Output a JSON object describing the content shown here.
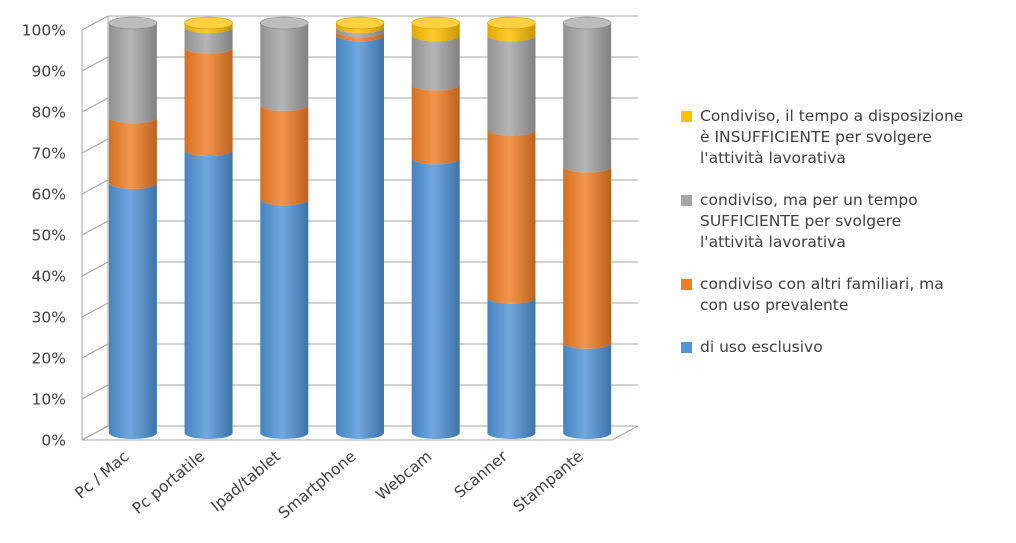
{
  "chart_data": {
    "type": "bar",
    "stacked": true,
    "percent": true,
    "style": "3d-cylinder",
    "categories": [
      "Pc / Mac",
      "Pc portatile",
      "Ipad/tablet",
      "Smartphone",
      "Webcam",
      "Scanner",
      "Stampante"
    ],
    "series": [
      {
        "name": "di uso esclusivo",
        "color": "#4f95d8",
        "values": [
          61,
          69,
          57,
          97,
          67,
          33,
          22
        ]
      },
      {
        "name": "condiviso con altri familiari, ma\ncon uso prevalente",
        "color": "#f07e26",
        "values": [
          16,
          25,
          23,
          1,
          18,
          41,
          43
        ]
      },
      {
        "name": "condiviso, ma per un tempo\nSUFFICIENTE per svolgere\nl'attività lavorativa",
        "color": "#a5a5a5",
        "values": [
          23,
          5,
          20,
          1,
          12,
          23,
          35
        ]
      },
      {
        "name": "Condiviso, il tempo a disposizione\nè INSUFFICIENTE per svolgere\nl'attività lavorativa",
        "color": "#ffc000",
        "values": [
          0,
          1,
          0,
          1,
          3,
          3,
          0
        ]
      }
    ],
    "legend_order": [
      3,
      2,
      1,
      0
    ],
    "ylim": [
      0,
      100
    ],
    "yticks": [
      "0%",
      "10%",
      "20%",
      "30%",
      "40%",
      "50%",
      "60%",
      "70%",
      "80%",
      "90%",
      "100%"
    ],
    "grid": true,
    "legend_position": "right"
  }
}
